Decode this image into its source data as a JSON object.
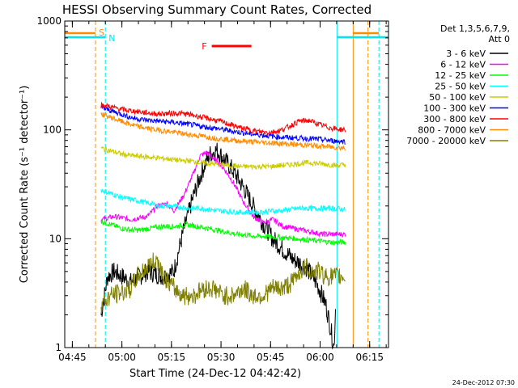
{
  "chart_data": {
    "type": "line",
    "title": "HESSI Observing Summary Count Rates, Corrected",
    "xlabel": "Start Time (24-Dec-12 04:42:42)",
    "ylabel": "Corrected Count Rate (s⁻¹ detector⁻¹)",
    "x_unit": "minutes after 04:42:42",
    "xlim": [
      0,
      98
    ],
    "ylim": [
      1,
      1000
    ],
    "yscale": "log",
    "x_ticks": [
      {
        "label": "04:45",
        "x": 2.3
      },
      {
        "label": "05:00",
        "x": 17.3
      },
      {
        "label": "05:15",
        "x": 32.3
      },
      {
        "label": "05:30",
        "x": 47.3
      },
      {
        "label": "05:45",
        "x": 62.3
      },
      {
        "label": "06:00",
        "x": 77.3
      },
      {
        "label": "06:15",
        "x": 92.3
      }
    ],
    "y_ticks": [
      {
        "label": "1",
        "y": 1
      },
      {
        "label": "10",
        "y": 10
      },
      {
        "label": "100",
        "y": 100
      },
      {
        "label": "1000",
        "y": 1000
      }
    ],
    "legend_header": [
      "Det 1,3,5,6,7,9,",
      "Att 0"
    ],
    "legend_position": "right",
    "footer": "24-Dec-2012 07:30",
    "markers": [
      {
        "label": "S",
        "x": 9.3,
        "color": "#ff8c00"
      },
      {
        "label": "N",
        "x": 12.3,
        "color": "#00e5ee"
      },
      {
        "label": "F",
        "x_start": 44.5,
        "x_end": 56.5,
        "color": "#ff0000"
      }
    ],
    "vlines": [
      {
        "x": 9.3,
        "color": "#ff8c00",
        "dashed": true
      },
      {
        "x": 12.3,
        "color": "#00e5ee",
        "dashed": true
      },
      {
        "x": 82.4,
        "color": "#00e5ee",
        "dashed": false
      },
      {
        "x": 87.3,
        "color": "#ff8c00",
        "dashed": false
      },
      {
        "x": 91.8,
        "color": "#ff8c00",
        "dashed": true
      },
      {
        "x": 95.1,
        "color": "#00e5ee",
        "dashed": true
      }
    ],
    "series": [
      {
        "name": "3 - 6 keV",
        "color": "#000000",
        "points": [
          [
            11,
            2
          ],
          [
            12,
            3
          ],
          [
            13,
            4.5
          ],
          [
            15,
            5
          ],
          [
            20,
            4
          ],
          [
            25,
            5
          ],
          [
            30,
            4.5
          ],
          [
            33,
            5
          ],
          [
            36,
            12
          ],
          [
            39,
            25
          ],
          [
            42,
            45
          ],
          [
            44,
            60
          ],
          [
            46,
            65
          ],
          [
            48,
            55
          ],
          [
            51,
            42
          ],
          [
            54,
            30
          ],
          [
            57,
            20
          ],
          [
            60,
            14
          ],
          [
            63,
            10
          ],
          [
            66,
            8
          ],
          [
            69,
            6.5
          ],
          [
            71,
            6
          ],
          [
            73,
            5.5
          ],
          [
            75,
            4.5
          ],
          [
            77,
            3.5
          ],
          [
            79,
            2.5
          ],
          [
            80.5,
            1.5
          ],
          [
            81.5,
            1
          ],
          [
            82,
            2.5
          ]
        ]
      },
      {
        "name": "6 - 12 keV",
        "color": "#ff00ff",
        "points": [
          [
            11,
            15
          ],
          [
            15,
            16
          ],
          [
            20,
            15
          ],
          [
            25,
            16
          ],
          [
            28,
            20
          ],
          [
            31,
            21
          ],
          [
            33,
            18
          ],
          [
            36,
            25
          ],
          [
            39,
            40
          ],
          [
            41,
            58
          ],
          [
            43,
            62
          ],
          [
            45,
            55
          ],
          [
            48,
            45
          ],
          [
            51,
            33
          ],
          [
            54,
            22
          ],
          [
            57,
            16
          ],
          [
            60,
            14
          ],
          [
            63,
            15
          ],
          [
            66,
            13
          ],
          [
            69,
            12.5
          ],
          [
            72,
            12
          ],
          [
            75,
            11.5
          ],
          [
            78,
            11
          ],
          [
            80,
            11
          ],
          [
            82,
            11
          ],
          [
            85,
            11
          ]
        ]
      },
      {
        "name": "12 - 25 keV",
        "color": "#00ff00",
        "points": [
          [
            11,
            14.5
          ],
          [
            14,
            13.5
          ],
          [
            17,
            12.5
          ],
          [
            20,
            12
          ],
          [
            23,
            12
          ],
          [
            26,
            12.5
          ],
          [
            30,
            13
          ],
          [
            34,
            13
          ],
          [
            37,
            13.5
          ],
          [
            40,
            13
          ],
          [
            43,
            12.5
          ],
          [
            46,
            12
          ],
          [
            49,
            11.5
          ],
          [
            52,
            11
          ],
          [
            55,
            10.8
          ],
          [
            58,
            10.5
          ],
          [
            61,
            10.5
          ],
          [
            64,
            10.3
          ],
          [
            67,
            10.2
          ],
          [
            70,
            10
          ],
          [
            73,
            9.8
          ],
          [
            76,
            9.6
          ],
          [
            79,
            9.4
          ],
          [
            82,
            9.2
          ],
          [
            85,
            9.3
          ]
        ]
      },
      {
        "name": "25 - 50 keV",
        "color": "#00ffff",
        "points": [
          [
            11,
            28
          ],
          [
            14,
            26
          ],
          [
            17,
            24
          ],
          [
            20,
            23
          ],
          [
            23,
            22
          ],
          [
            26,
            21
          ],
          [
            29,
            20
          ],
          [
            32,
            20
          ],
          [
            35,
            19.5
          ],
          [
            38,
            19
          ],
          [
            41,
            19
          ],
          [
            44,
            18.5
          ],
          [
            47,
            18
          ],
          [
            50,
            17.8
          ],
          [
            53,
            17.5
          ],
          [
            56,
            17.5
          ],
          [
            59,
            17.5
          ],
          [
            62,
            18
          ],
          [
            65,
            18
          ],
          [
            68,
            18.5
          ],
          [
            71,
            19
          ],
          [
            74,
            19
          ],
          [
            77,
            19
          ],
          [
            80,
            19
          ],
          [
            82,
            19
          ],
          [
            85,
            18.5
          ]
        ]
      },
      {
        "name": "50 - 100 keV",
        "color": "#cccc00",
        "points": [
          [
            11,
            68
          ],
          [
            14,
            64
          ],
          [
            17,
            60
          ],
          [
            20,
            58
          ],
          [
            23,
            57
          ],
          [
            26,
            56
          ],
          [
            29,
            55
          ],
          [
            32,
            54
          ],
          [
            35,
            52
          ],
          [
            38,
            52
          ],
          [
            41,
            50
          ],
          [
            44,
            49
          ],
          [
            47,
            48
          ],
          [
            50,
            47
          ],
          [
            53,
            46
          ],
          [
            56,
            46
          ],
          [
            59,
            46
          ],
          [
            62,
            46
          ],
          [
            65,
            47
          ],
          [
            68,
            48
          ],
          [
            71,
            49
          ],
          [
            74,
            50
          ],
          [
            77,
            49
          ],
          [
            80,
            48
          ],
          [
            82,
            47
          ],
          [
            85,
            48
          ]
        ]
      },
      {
        "name": "100 - 300 keV",
        "color": "#0000ff",
        "points": [
          [
            11,
            160
          ],
          [
            14,
            150
          ],
          [
            17,
            140
          ],
          [
            20,
            130
          ],
          [
            23,
            125
          ],
          [
            26,
            122
          ],
          [
            29,
            120
          ],
          [
            32,
            118
          ],
          [
            35,
            115
          ],
          [
            38,
            112
          ],
          [
            41,
            108
          ],
          [
            44,
            105
          ],
          [
            47,
            102
          ],
          [
            50,
            98
          ],
          [
            53,
            95
          ],
          [
            56,
            92
          ],
          [
            59,
            90
          ],
          [
            62,
            88
          ],
          [
            65,
            86
          ],
          [
            68,
            85
          ],
          [
            71,
            84
          ],
          [
            74,
            83
          ],
          [
            77,
            82
          ],
          [
            80,
            80
          ],
          [
            82,
            79
          ],
          [
            85,
            78
          ]
        ]
      },
      {
        "name": "300 - 800 keV",
        "color": "#ff0000",
        "points": [
          [
            11,
            170
          ],
          [
            14,
            162
          ],
          [
            17,
            155
          ],
          [
            20,
            150
          ],
          [
            23,
            146
          ],
          [
            26,
            142
          ],
          [
            29,
            140
          ],
          [
            32,
            142
          ],
          [
            35,
            142
          ],
          [
            38,
            138
          ],
          [
            41,
            132
          ],
          [
            44,
            126
          ],
          [
            47,
            120
          ],
          [
            50,
            112
          ],
          [
            53,
            105
          ],
          [
            56,
            100
          ],
          [
            59,
            96
          ],
          [
            62,
            95
          ],
          [
            65,
            98
          ],
          [
            68,
            108
          ],
          [
            71,
            120
          ],
          [
            74,
            122
          ],
          [
            77,
            112
          ],
          [
            80,
            105
          ],
          [
            82,
            102
          ],
          [
            85,
            100
          ]
        ]
      },
      {
        "name": "800 - 7000 keV",
        "color": "#ff8c00",
        "points": [
          [
            11,
            140
          ],
          [
            14,
            130
          ],
          [
            17,
            120
          ],
          [
            20,
            112
          ],
          [
            23,
            106
          ],
          [
            26,
            102
          ],
          [
            29,
            99
          ],
          [
            32,
            96
          ],
          [
            35,
            93
          ],
          [
            38,
            90
          ],
          [
            41,
            88
          ],
          [
            44,
            85
          ],
          [
            47,
            83
          ],
          [
            50,
            81
          ],
          [
            53,
            79
          ],
          [
            56,
            78
          ],
          [
            59,
            77
          ],
          [
            62,
            76
          ],
          [
            65,
            75
          ],
          [
            68,
            74
          ],
          [
            71,
            73
          ],
          [
            74,
            72
          ],
          [
            77,
            71
          ],
          [
            80,
            70
          ],
          [
            82,
            69
          ],
          [
            85,
            68
          ]
        ]
      },
      {
        "name": "7000 - 20000 keV",
        "color": "#808000",
        "points": [
          [
            11,
            2.5
          ],
          [
            14,
            3
          ],
          [
            17,
            3.2
          ],
          [
            20,
            3.5
          ],
          [
            22,
            4.5
          ],
          [
            25,
            5.5
          ],
          [
            28,
            6.5
          ],
          [
            30,
            4.5
          ],
          [
            33,
            3.5
          ],
          [
            36,
            3
          ],
          [
            39,
            3
          ],
          [
            42,
            3.5
          ],
          [
            45,
            3.5
          ],
          [
            48,
            3
          ],
          [
            51,
            3
          ],
          [
            54,
            3.5
          ],
          [
            57,
            3
          ],
          [
            60,
            3
          ],
          [
            63,
            3.5
          ],
          [
            66,
            3.5
          ],
          [
            69,
            4
          ],
          [
            71,
            5
          ],
          [
            73,
            5.5
          ],
          [
            75,
            5
          ],
          [
            77,
            5
          ],
          [
            79,
            4.5
          ],
          [
            81,
            4.5
          ],
          [
            83,
            4.5
          ],
          [
            85,
            4.5
          ]
        ]
      }
    ]
  }
}
